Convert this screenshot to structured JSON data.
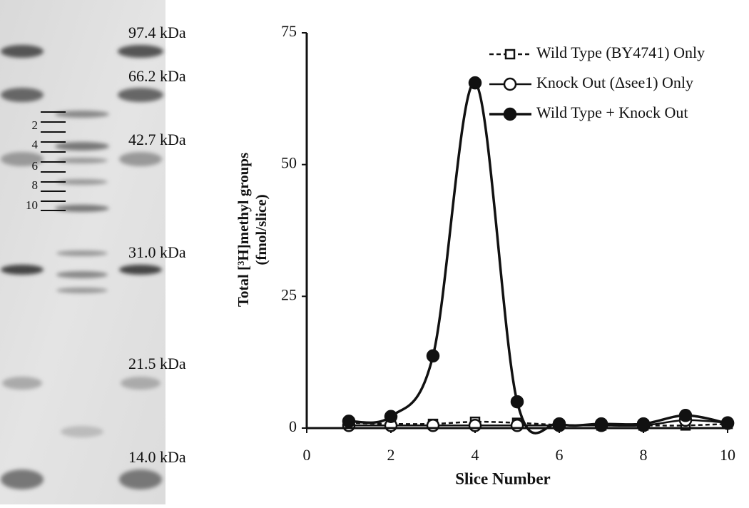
{
  "gel": {
    "markers": [
      "97.4 kDa",
      "66.2 kDa",
      "42.7 kDa",
      "31.0 kDa",
      "21.5 kDa",
      "14.0 kDa"
    ],
    "slice_labels": [
      2,
      4,
      6,
      8,
      10
    ]
  },
  "chart_data": {
    "type": "line",
    "x_label": "Slice Number",
    "y_label": [
      "Total [³H]methyl groups",
      "(fmol/slice)"
    ],
    "x": [
      1,
      2,
      3,
      4,
      5,
      6,
      7,
      8,
      9,
      10
    ],
    "xlim": [
      0,
      10
    ],
    "xticks": [
      0,
      2,
      4,
      6,
      8,
      10
    ],
    "ylim": [
      0,
      75
    ],
    "yticks": [
      0,
      25,
      50,
      75
    ],
    "smooth": true,
    "series": [
      {
        "name": "Wild Type (BY4741) Only",
        "color": "#111111",
        "marker": "square",
        "line_style": "dashed",
        "values": [
          1.0,
          0.8,
          0.8,
          1.2,
          1.0,
          0.6,
          0.5,
          0.5,
          0.5,
          0.8
        ]
      },
      {
        "name": "Knock Out (Δsee1) Only",
        "color": "#111111",
        "marker": "open-circle",
        "line_style": "solid",
        "values": [
          0.5,
          0.5,
          0.5,
          0.5,
          0.5,
          0.5,
          0.5,
          0.5,
          1.5,
          1.0
        ]
      },
      {
        "name": "Wild Type + Knock Out",
        "color": "#111111",
        "marker": "filled-circle",
        "line_style": "solid",
        "values": [
          1.3,
          2.2,
          13.7,
          65.5,
          5.0,
          0.8,
          0.8,
          0.8,
          2.4,
          0.9
        ]
      }
    ]
  }
}
